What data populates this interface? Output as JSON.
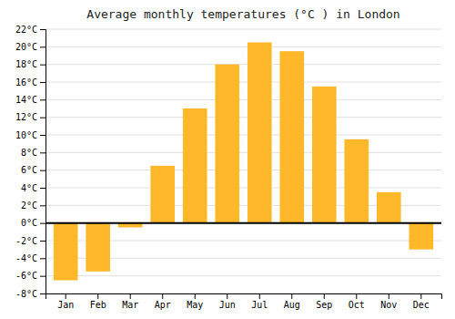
{
  "chart_data": {
    "type": "bar",
    "title": "Average monthly temperatures (°C ) in London",
    "categories": [
      "Jan",
      "Feb",
      "Mar",
      "Apr",
      "May",
      "Jun",
      "Jul",
      "Aug",
      "Sep",
      "Oct",
      "Nov",
      "Dec"
    ],
    "values": [
      -6.5,
      -5.5,
      -0.5,
      6.5,
      13.0,
      18.0,
      20.5,
      19.5,
      15.5,
      9.5,
      3.5,
      -3.0
    ],
    "color": "#FFB829",
    "ylim": [
      -8,
      22
    ],
    "yticks": [
      {
        "value": -8,
        "label": "-8°C"
      },
      {
        "value": -6,
        "label": "-6°C"
      },
      {
        "value": -4,
        "label": "-4°C"
      },
      {
        "value": -2,
        "label": "-2°C"
      },
      {
        "value": 0,
        "label": "0°C"
      },
      {
        "value": 2,
        "label": "2°C"
      },
      {
        "value": 4,
        "label": "4°C"
      },
      {
        "value": 6,
        "label": "6°C"
      },
      {
        "value": 8,
        "label": "8°C"
      },
      {
        "value": 10,
        "label": "10°C"
      },
      {
        "value": 12,
        "label": "12°C"
      },
      {
        "value": 14,
        "label": "14°C"
      },
      {
        "value": 16,
        "label": "16°C"
      },
      {
        "value": 18,
        "label": "18°C"
      },
      {
        "value": 20,
        "label": "20°C"
      },
      {
        "value": 22,
        "label": "22°C"
      }
    ],
    "grid": true
  }
}
